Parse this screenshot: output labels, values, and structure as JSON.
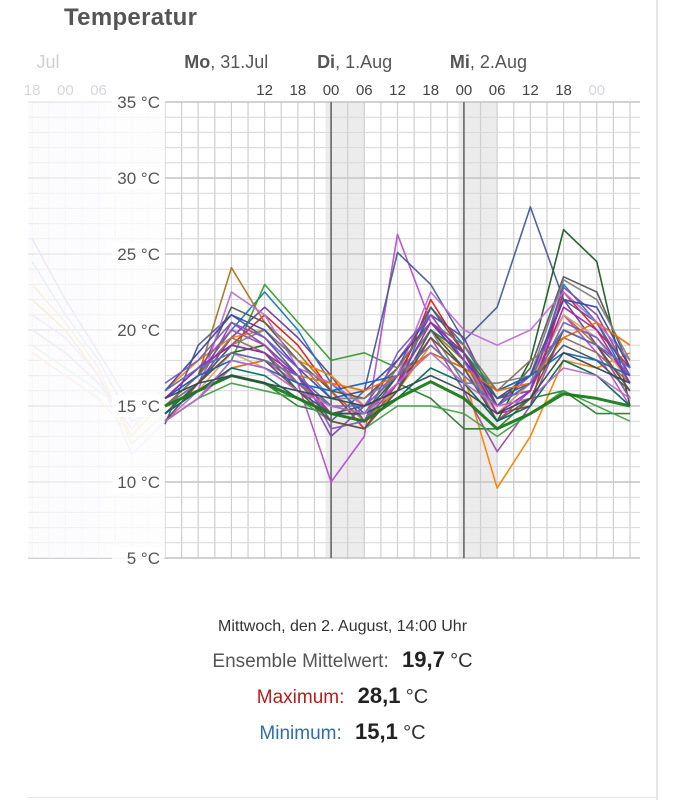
{
  "header": {
    "title": "Temperatur"
  },
  "chart_data": {
    "type": "line",
    "ylim": [
      5,
      35
    ],
    "y_ticks": [
      {
        "value": 35,
        "label": "35 °C"
      },
      {
        "value": 30,
        "label": "30 °C"
      },
      {
        "value": 25,
        "label": "25 °C"
      },
      {
        "value": 20,
        "label": "20 °C"
      },
      {
        "value": 15,
        "label": "15 °C"
      },
      {
        "value": 10,
        "label": "10 °C"
      },
      {
        "value": 5,
        "label": "5 °C"
      }
    ],
    "x_hours_range": [
      -6,
      78
    ],
    "day_labels": [
      {
        "hour": -24,
        "bold": "",
        "text": "Jul",
        "faded": true
      },
      {
        "hour": 0,
        "bold": "Mo",
        "text": ", 31.Jul",
        "faded": false
      },
      {
        "hour": 24,
        "bold": "Di",
        "text": ", 1.Aug",
        "faded": false
      },
      {
        "hour": 48,
        "bold": "Mi",
        "text": ", 2.Aug",
        "faded": false
      }
    ],
    "hour_ticks": [
      {
        "hour": -30,
        "label": "18",
        "faded": true
      },
      {
        "hour": -24,
        "label": "00",
        "faded": true
      },
      {
        "hour": -18,
        "label": "06",
        "faded": true
      },
      {
        "hour": 12,
        "label": "12",
        "faded": false
      },
      {
        "hour": 18,
        "label": "18",
        "faded": false
      },
      {
        "hour": 24,
        "label": "00",
        "faded": false
      },
      {
        "hour": 30,
        "label": "06",
        "faded": false
      },
      {
        "hour": 36,
        "label": "12",
        "faded": false
      },
      {
        "hour": 42,
        "label": "18",
        "faded": false
      },
      {
        "hour": 48,
        "label": "00",
        "faded": false
      },
      {
        "hour": 54,
        "label": "06",
        "faded": false
      },
      {
        "hour": 60,
        "label": "12",
        "faded": false
      },
      {
        "hour": 66,
        "label": "18",
        "faded": false
      },
      {
        "hour": 72,
        "label": "00",
        "faded": true
      }
    ],
    "night_bands": [
      [
        23,
        30
      ],
      [
        47,
        54
      ]
    ],
    "midnights": [
      24,
      48
    ],
    "x_hours": [
      -6,
      0,
      6,
      12,
      18,
      24,
      30,
      36,
      42,
      48,
      54,
      60,
      66,
      72,
      78
    ],
    "series": [
      {
        "color": "#6a3d9a",
        "values": [
          14.5,
          16.5,
          19.5,
          21.5,
          19.5,
          17.0,
          14.0,
          17.0,
          21.0,
          19.5,
          15.0,
          16.5,
          22.0,
          19.0,
          17.0
        ]
      },
      {
        "color": "#1f78b4",
        "values": [
          15.0,
          17.0,
          20.0,
          22.5,
          20.0,
          16.5,
          14.5,
          16.0,
          21.5,
          19.0,
          15.5,
          16.0,
          23.0,
          20.5,
          16.5
        ]
      },
      {
        "color": "#33a02c",
        "values": [
          14.0,
          15.5,
          18.0,
          23.0,
          20.5,
          18.0,
          18.5,
          17.5,
          20.5,
          18.5,
          16.0,
          17.0,
          20.0,
          19.0,
          15.5
        ]
      },
      {
        "color": "#e31a1c",
        "values": [
          15.5,
          17.5,
          19.0,
          21.0,
          19.0,
          16.0,
          13.5,
          16.5,
          22.0,
          18.5,
          14.5,
          15.0,
          22.5,
          20.0,
          17.5
        ]
      },
      {
        "color": "#ff7f00",
        "values": [
          16.0,
          18.0,
          19.5,
          20.0,
          18.0,
          17.0,
          15.0,
          16.0,
          19.0,
          17.0,
          9.6,
          13.0,
          18.0,
          17.5,
          18.5
        ]
      },
      {
        "color": "#a6761d",
        "values": [
          15.0,
          17.0,
          24.1,
          20.5,
          18.5,
          16.0,
          14.0,
          16.0,
          20.0,
          18.0,
          14.5,
          16.5,
          21.0,
          19.0,
          16.0
        ]
      },
      {
        "color": "#b84fd1",
        "values": [
          14.0,
          15.5,
          17.5,
          18.0,
          16.5,
          10.0,
          13.0,
          26.3,
          20.5,
          18.0,
          15.0,
          17.0,
          21.0,
          18.5,
          15.0
        ]
      },
      {
        "color": "#4a5a9a",
        "values": [
          13.8,
          19.0,
          21.0,
          19.5,
          17.0,
          14.0,
          16.0,
          25.1,
          23.0,
          19.3,
          21.5,
          28.1,
          22.0,
          20.5,
          17.0
        ]
      },
      {
        "color": "#1b5e20",
        "values": [
          15.0,
          16.5,
          18.5,
          19.0,
          17.0,
          15.0,
          14.5,
          17.0,
          20.0,
          17.5,
          14.0,
          18.0,
          26.6,
          24.5,
          15.0
        ]
      },
      {
        "color": "#2e7d32",
        "values": [
          14.5,
          16.0,
          17.0,
          16.5,
          15.0,
          14.5,
          14.5,
          16.5,
          15.5,
          13.5,
          13.5,
          15.5,
          16.0,
          14.5,
          14.5
        ]
      },
      {
        "color": "#8e44ad",
        "values": [
          15.0,
          16.5,
          20.5,
          19.0,
          17.0,
          13.0,
          15.0,
          18.0,
          21.0,
          18.0,
          15.5,
          16.0,
          22.8,
          21.0,
          17.0
        ]
      },
      {
        "color": "#555555",
        "values": [
          15.5,
          17.0,
          21.5,
          20.5,
          18.0,
          16.0,
          15.5,
          17.5,
          21.5,
          18.5,
          15.0,
          17.5,
          23.5,
          22.5,
          17.5
        ]
      },
      {
        "color": "#c06ad8",
        "values": [
          14.0,
          16.0,
          22.5,
          21.0,
          17.5,
          16.5,
          15.0,
          17.0,
          22.5,
          20.0,
          19.0,
          20.0,
          22.5,
          20.5,
          18.0
        ]
      },
      {
        "color": "#7f7f7f",
        "values": [
          15.0,
          16.5,
          19.0,
          20.0,
          18.0,
          15.5,
          15.5,
          17.0,
          20.0,
          16.5,
          16.5,
          17.0,
          23.3,
          22.0,
          18.0
        ]
      },
      {
        "color": "#d4a373",
        "values": [
          14.5,
          16.0,
          18.5,
          17.5,
          16.0,
          15.0,
          14.5,
          16.0,
          19.5,
          17.5,
          14.5,
          16.5,
          21.0,
          19.5,
          16.5
        ]
      },
      {
        "color": "#984ea3",
        "values": [
          15.5,
          17.5,
          20.0,
          19.0,
          16.5,
          14.5,
          14.0,
          16.5,
          19.5,
          16.0,
          12.0,
          15.0,
          20.0,
          19.0,
          15.5
        ]
      },
      {
        "color": "#3949ab",
        "values": [
          16.0,
          18.5,
          21.0,
          20.0,
          17.5,
          15.5,
          16.0,
          18.0,
          20.5,
          18.0,
          15.5,
          17.0,
          22.0,
          21.5,
          17.5
        ]
      },
      {
        "color": "#43a047",
        "values": [
          14.0,
          15.5,
          16.5,
          16.0,
          15.5,
          14.0,
          13.5,
          15.0,
          15.0,
          14.5,
          13.0,
          14.5,
          16.0,
          15.0,
          14.0
        ]
      },
      {
        "color": "#8d6e63",
        "values": [
          15.0,
          17.0,
          19.5,
          18.5,
          16.5,
          15.0,
          14.5,
          17.5,
          20.5,
          19.0,
          16.0,
          18.0,
          19.5,
          18.5,
          16.5
        ]
      },
      {
        "color": "#7e57c2",
        "values": [
          16.5,
          18.0,
          20.5,
          19.5,
          17.5,
          13.5,
          14.0,
          18.5,
          21.0,
          18.0,
          14.0,
          16.0,
          20.5,
          19.5,
          17.0
        ]
      },
      {
        "color": "#455a64",
        "values": [
          14.5,
          16.5,
          19.0,
          18.5,
          16.0,
          14.5,
          15.0,
          16.0,
          20.0,
          18.5,
          15.5,
          16.5,
          19.0,
          18.0,
          16.0
        ]
      },
      {
        "color": "#1565c0",
        "values": [
          15.5,
          17.0,
          18.0,
          17.5,
          16.5,
          16.0,
          16.5,
          17.0,
          18.5,
          17.5,
          16.0,
          17.0,
          18.5,
          18.0,
          17.0
        ]
      },
      {
        "color": "#ef6c00",
        "values": [
          15.0,
          16.0,
          17.5,
          18.0,
          17.0,
          16.5,
          16.0,
          17.0,
          18.5,
          17.5,
          16.0,
          16.5,
          19.5,
          20.5,
          19.0
        ]
      },
      {
        "color": "#6d4c41",
        "values": [
          14.0,
          16.5,
          18.5,
          18.0,
          16.0,
          14.0,
          13.5,
          16.0,
          19.5,
          17.5,
          14.0,
          15.5,
          20.0,
          19.0,
          16.0
        ]
      },
      {
        "color": "#9c27b0",
        "values": [
          15.5,
          17.5,
          19.0,
          18.5,
          17.0,
          14.5,
          14.5,
          16.5,
          20.5,
          18.5,
          14.5,
          16.0,
          21.5,
          20.0,
          16.5
        ]
      },
      {
        "color": "#00695c",
        "values": [
          14.5,
          16.0,
          17.5,
          17.0,
          15.5,
          14.5,
          14.5,
          15.5,
          17.5,
          16.5,
          14.0,
          15.0,
          18.0,
          17.0,
          15.0
        ]
      },
      {
        "color": "#5c6bc0",
        "values": [
          16.0,
          17.5,
          18.5,
          18.0,
          17.0,
          15.0,
          15.0,
          17.0,
          19.0,
          17.0,
          15.0,
          16.5,
          20.0,
          19.0,
          17.5
        ]
      },
      {
        "color": "#1b7a1b",
        "values": [
          15.0,
          16.0,
          17.0,
          16.5,
          15.5,
          14.5,
          14.0,
          15.5,
          16.6,
          15.5,
          13.5,
          14.5,
          15.8,
          15.5,
          15.0
        ]
      },
      {
        "color": "#ba68c8",
        "values": [
          14.0,
          15.5,
          18.0,
          17.5,
          16.0,
          15.0,
          14.5,
          16.5,
          18.5,
          16.5,
          15.0,
          15.5,
          17.5,
          17.0,
          15.5
        ]
      },
      {
        "color": "#37474f",
        "values": [
          15.5,
          16.5,
          17.0,
          16.5,
          16.0,
          15.5,
          15.0,
          16.0,
          17.0,
          16.0,
          14.5,
          15.5,
          18.5,
          17.5,
          16.5
        ]
      }
    ],
    "ghost_series": [
      {
        "color": "#cfc4ea",
        "values": [
          26.0,
          22.0,
          18.5,
          15.0,
          14.5
        ]
      },
      {
        "color": "#e8d6a8",
        "values": [
          22.0,
          20.0,
          17.0,
          13.0,
          15.5
        ]
      },
      {
        "color": "#c9d8ec",
        "values": [
          24.5,
          21.0,
          18.0,
          14.0,
          15.0
        ]
      },
      {
        "color": "#d9cbe6",
        "values": [
          20.0,
          18.5,
          16.5,
          13.5,
          16.0
        ]
      },
      {
        "color": "#e6dcc4",
        "values": [
          23.0,
          20.5,
          17.5,
          12.5,
          14.5
        ]
      },
      {
        "color": "#d6e6d2",
        "values": [
          19.0,
          17.5,
          16.0,
          14.5,
          15.5
        ]
      },
      {
        "color": "#e0d2f0",
        "values": [
          21.0,
          19.5,
          17.0,
          11.8,
          14.0
        ]
      },
      {
        "color": "#f0e0c0",
        "values": [
          18.5,
          17.0,
          15.5,
          13.0,
          16.5
        ]
      }
    ]
  },
  "readout": {
    "date": "Mittwoch, den 2. August, 14:00 Uhr",
    "mean_label": "Ensemble Mittelwert:",
    "mean_value": "19,7",
    "max_label": "Maximum:",
    "max_value": "28,1",
    "min_label": "Minimum:",
    "min_value": "15,1",
    "unit": "°C"
  }
}
